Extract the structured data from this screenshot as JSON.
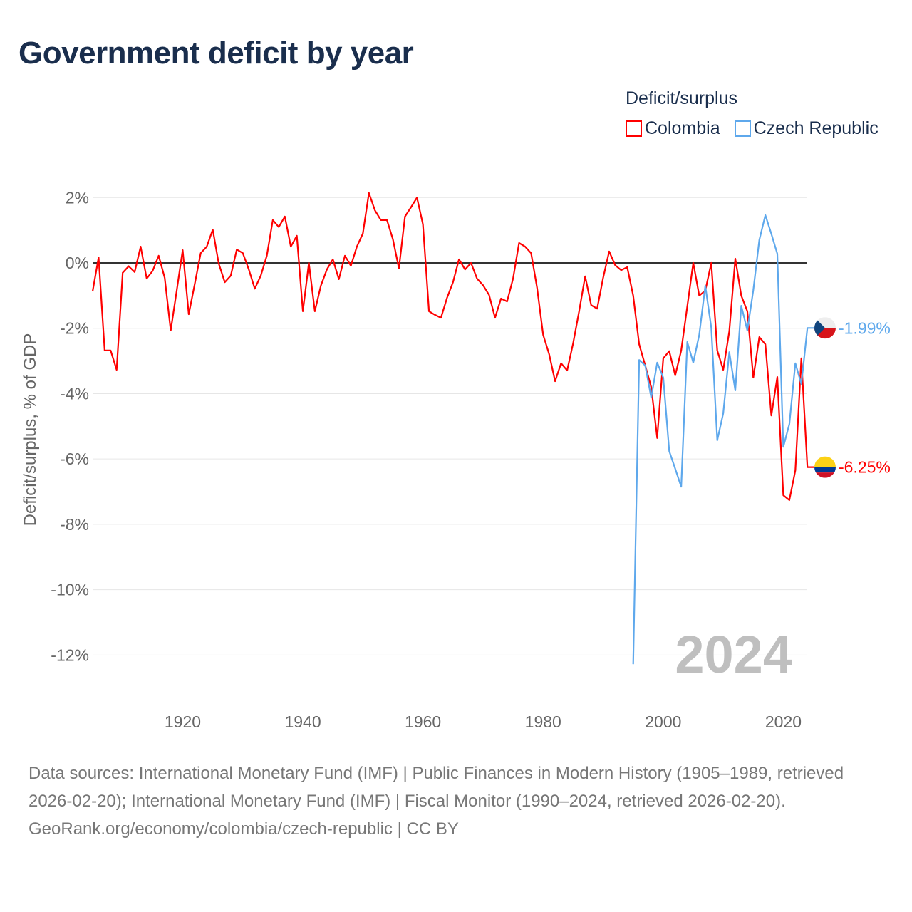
{
  "title": "Government deficit by year",
  "legend_title": "Deficit/surplus",
  "colors": {
    "colombia": "#ff0000",
    "czech": "#5ea8ec",
    "zero_line": "#333333",
    "grid": "#e6e6e6",
    "watermark": "#bfbfbf"
  },
  "chart_data": {
    "type": "line",
    "title": "Government deficit by year",
    "ylabel": "Deficit/surplus, % of GDP",
    "xlabel": "",
    "ylim": [
      -12,
      2
    ],
    "xlim": [
      1905,
      2024
    ],
    "grid": true,
    "legend_position": "top-right",
    "y_ticks": [
      2,
      0,
      -2,
      -4,
      -6,
      -8,
      -10,
      -12
    ],
    "y_tick_labels": [
      "2%",
      "0%",
      "-2%",
      "-4%",
      "-6%",
      "-8%",
      "-10%",
      "-12%"
    ],
    "x_ticks": [
      1920,
      1940,
      1960,
      1980,
      2000,
      2020
    ],
    "x_tick_labels": [
      "1920",
      "1940",
      "1960",
      "1980",
      "2000",
      "2020"
    ],
    "year_label": "2024",
    "series": [
      {
        "name": "Colombia",
        "start_year": 1905,
        "end_label": "-6.25%",
        "values": [
          -0.87,
          0.17,
          -2.68,
          -2.68,
          -3.27,
          -0.3,
          -0.1,
          -0.28,
          0.5,
          -0.48,
          -0.24,
          0.22,
          -0.46,
          -2.07,
          -0.85,
          0.39,
          -1.57,
          -0.65,
          0.3,
          0.5,
          1.02,
          -0.02,
          -0.59,
          -0.39,
          0.41,
          0.3,
          -0.2,
          -0.79,
          -0.39,
          0.22,
          1.31,
          1.1,
          1.42,
          0.5,
          0.83,
          -1.48,
          0,
          -1.48,
          -0.7,
          -0.2,
          0.11,
          -0.5,
          0.22,
          -0.09,
          0.5,
          0.9,
          2.14,
          1.61,
          1.31,
          1.31,
          0.72,
          -0.17,
          1.42,
          1.7,
          2.0,
          1.18,
          -1.48,
          -1.59,
          -1.68,
          -1.07,
          -0.59,
          0.11,
          -0.2,
          0,
          -0.48,
          -0.68,
          -0.98,
          -1.68,
          -1.09,
          -1.18,
          -0.48,
          0.61,
          0.5,
          0.3,
          -0.76,
          -2.2,
          -2.79,
          -3.62,
          -3.07,
          -3.29,
          -2.46,
          -1.48,
          -0.41,
          -1.29,
          -1.4,
          -0.46,
          0.35,
          -0.07,
          -0.22,
          -0.13,
          -1.0,
          -2.49,
          -3.14,
          -3.8,
          -5.36,
          -2.92,
          -2.7,
          -3.44,
          -2.68,
          -1.33,
          0,
          -1.0,
          -0.85,
          0.0,
          -2.68,
          -3.27,
          -2.09,
          0.13,
          -1.0,
          -1.48,
          -3.51,
          -2.27,
          -2.49,
          -4.67,
          -3.49,
          -7.11,
          -7.26,
          -6.35,
          -2.92,
          -6.25
        ]
      },
      {
        "name": "Czech Republic",
        "start_year": 1995,
        "end_label": "-1.99%",
        "values": [
          -12.28,
          -2.97,
          -3.14,
          -4.12,
          -3.05,
          -3.51,
          -5.76,
          -6.3,
          -6.85,
          -2.42,
          -3.05,
          -2.2,
          -0.7,
          -1.98,
          -5.43,
          -4.6,
          -2.73,
          -3.9,
          -1.31,
          -2.07,
          -0.83,
          0.7,
          1.46,
          0.89,
          0.28,
          -5.63,
          -4.93,
          -3.07,
          -3.71,
          -1.99
        ]
      }
    ]
  },
  "footer": {
    "sources": "Data sources: International Monetary Fund (IMF) | Public Finances in Modern History (1905–1989, retrieved 2026-02-20); International Monetary Fund (IMF) | Fiscal Monitor (1990–2024, retrieved 2026-02-20).",
    "attribution": "GeoRank.org/economy/colombia/czech-republic | CC BY"
  }
}
